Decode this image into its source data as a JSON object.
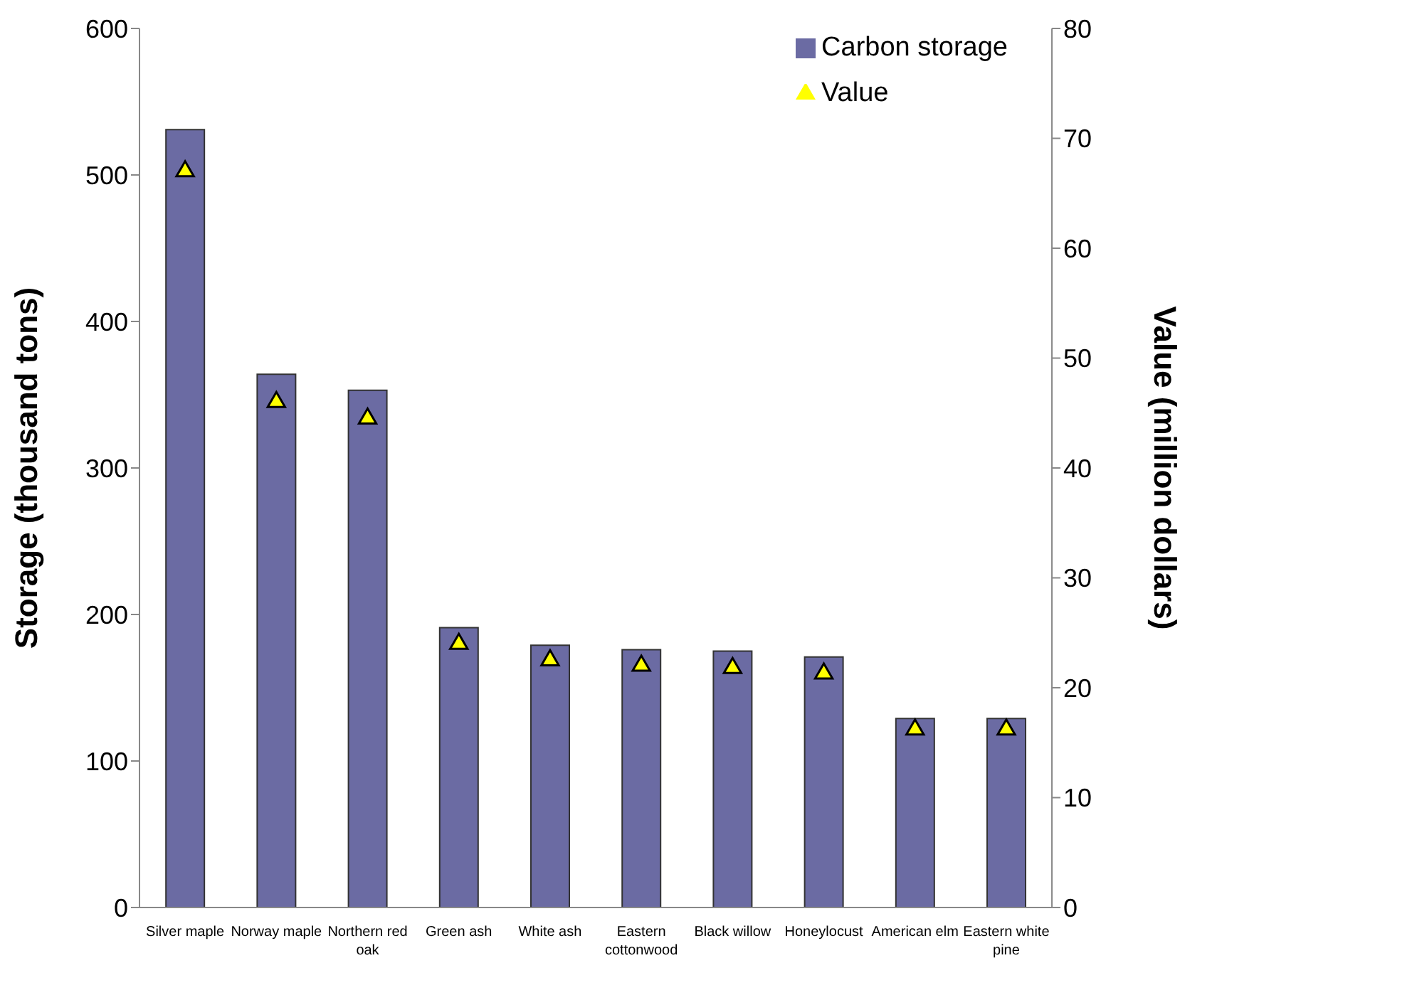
{
  "chart_data": {
    "type": "bar",
    "categories": [
      "Silver maple",
      "Norway maple",
      "Northern red oak",
      "Green ash",
      "White ash",
      "Eastern cottonwood",
      "Black willow",
      "Honeylocust",
      "American elm",
      "Eastern white pine"
    ],
    "series": [
      {
        "name": "Carbon storage",
        "color": "#6b6ba3",
        "values": [
          531,
          364,
          353,
          191,
          179,
          176,
          175,
          171,
          129,
          129
        ]
      },
      {
        "name": "Value",
        "type": "scatter",
        "axis": "y2",
        "color": "#ffff00",
        "marker": "triangle",
        "values": [
          67,
          46,
          44.5,
          24,
          22.5,
          22,
          21.8,
          21.3,
          16.2,
          16.2
        ]
      }
    ],
    "ylabel": "Storage (thousand tons)",
    "y2label": "Value (million dollars)",
    "ylim": [
      0,
      600
    ],
    "yticks": [
      0,
      100,
      200,
      300,
      400,
      500,
      600
    ],
    "y2lim": [
      0,
      80
    ],
    "y2ticks": [
      0,
      10,
      20,
      30,
      40,
      50,
      60,
      70,
      80
    ],
    "grid": false,
    "legend": "top right"
  }
}
